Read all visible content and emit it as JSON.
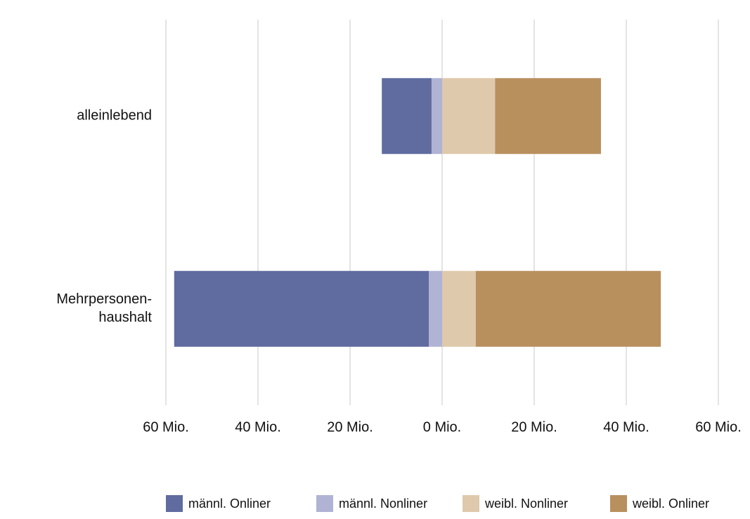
{
  "chart_data": {
    "type": "diverging-bar",
    "categories": [
      "alleinlebend",
      "Mehrpersonen-haushalt"
    ],
    "series": [
      {
        "name": "männl. Onliner",
        "color": "#606ba0",
        "values": [
          -10.8,
          -55.3
        ]
      },
      {
        "name": "männl. Nonliner",
        "color": "#b0b3d3",
        "values": [
          -2.3,
          -2.9
        ]
      },
      {
        "name": "weibl. Nonliner",
        "color": "#dfc9ac",
        "values": [
          11.5,
          7.3
        ]
      },
      {
        "name": "weibl. Onliner",
        "color": "#b8905e",
        "values": [
          23.0,
          40.2
        ]
      }
    ],
    "xlim": [
      -60,
      60
    ],
    "xticks": [
      {
        "value": -60,
        "label": "60 Mio."
      },
      {
        "value": -40,
        "label": "40 Mio."
      },
      {
        "value": -20,
        "label": "20 Mio."
      },
      {
        "value": 0,
        "label": "0 Mio."
      },
      {
        "value": 20,
        "label": "20 Mio."
      },
      {
        "value": 40,
        "label": "40 Mio."
      },
      {
        "value": 60,
        "label": "60 Mio."
      }
    ],
    "grid": true,
    "legend": "bottom"
  }
}
